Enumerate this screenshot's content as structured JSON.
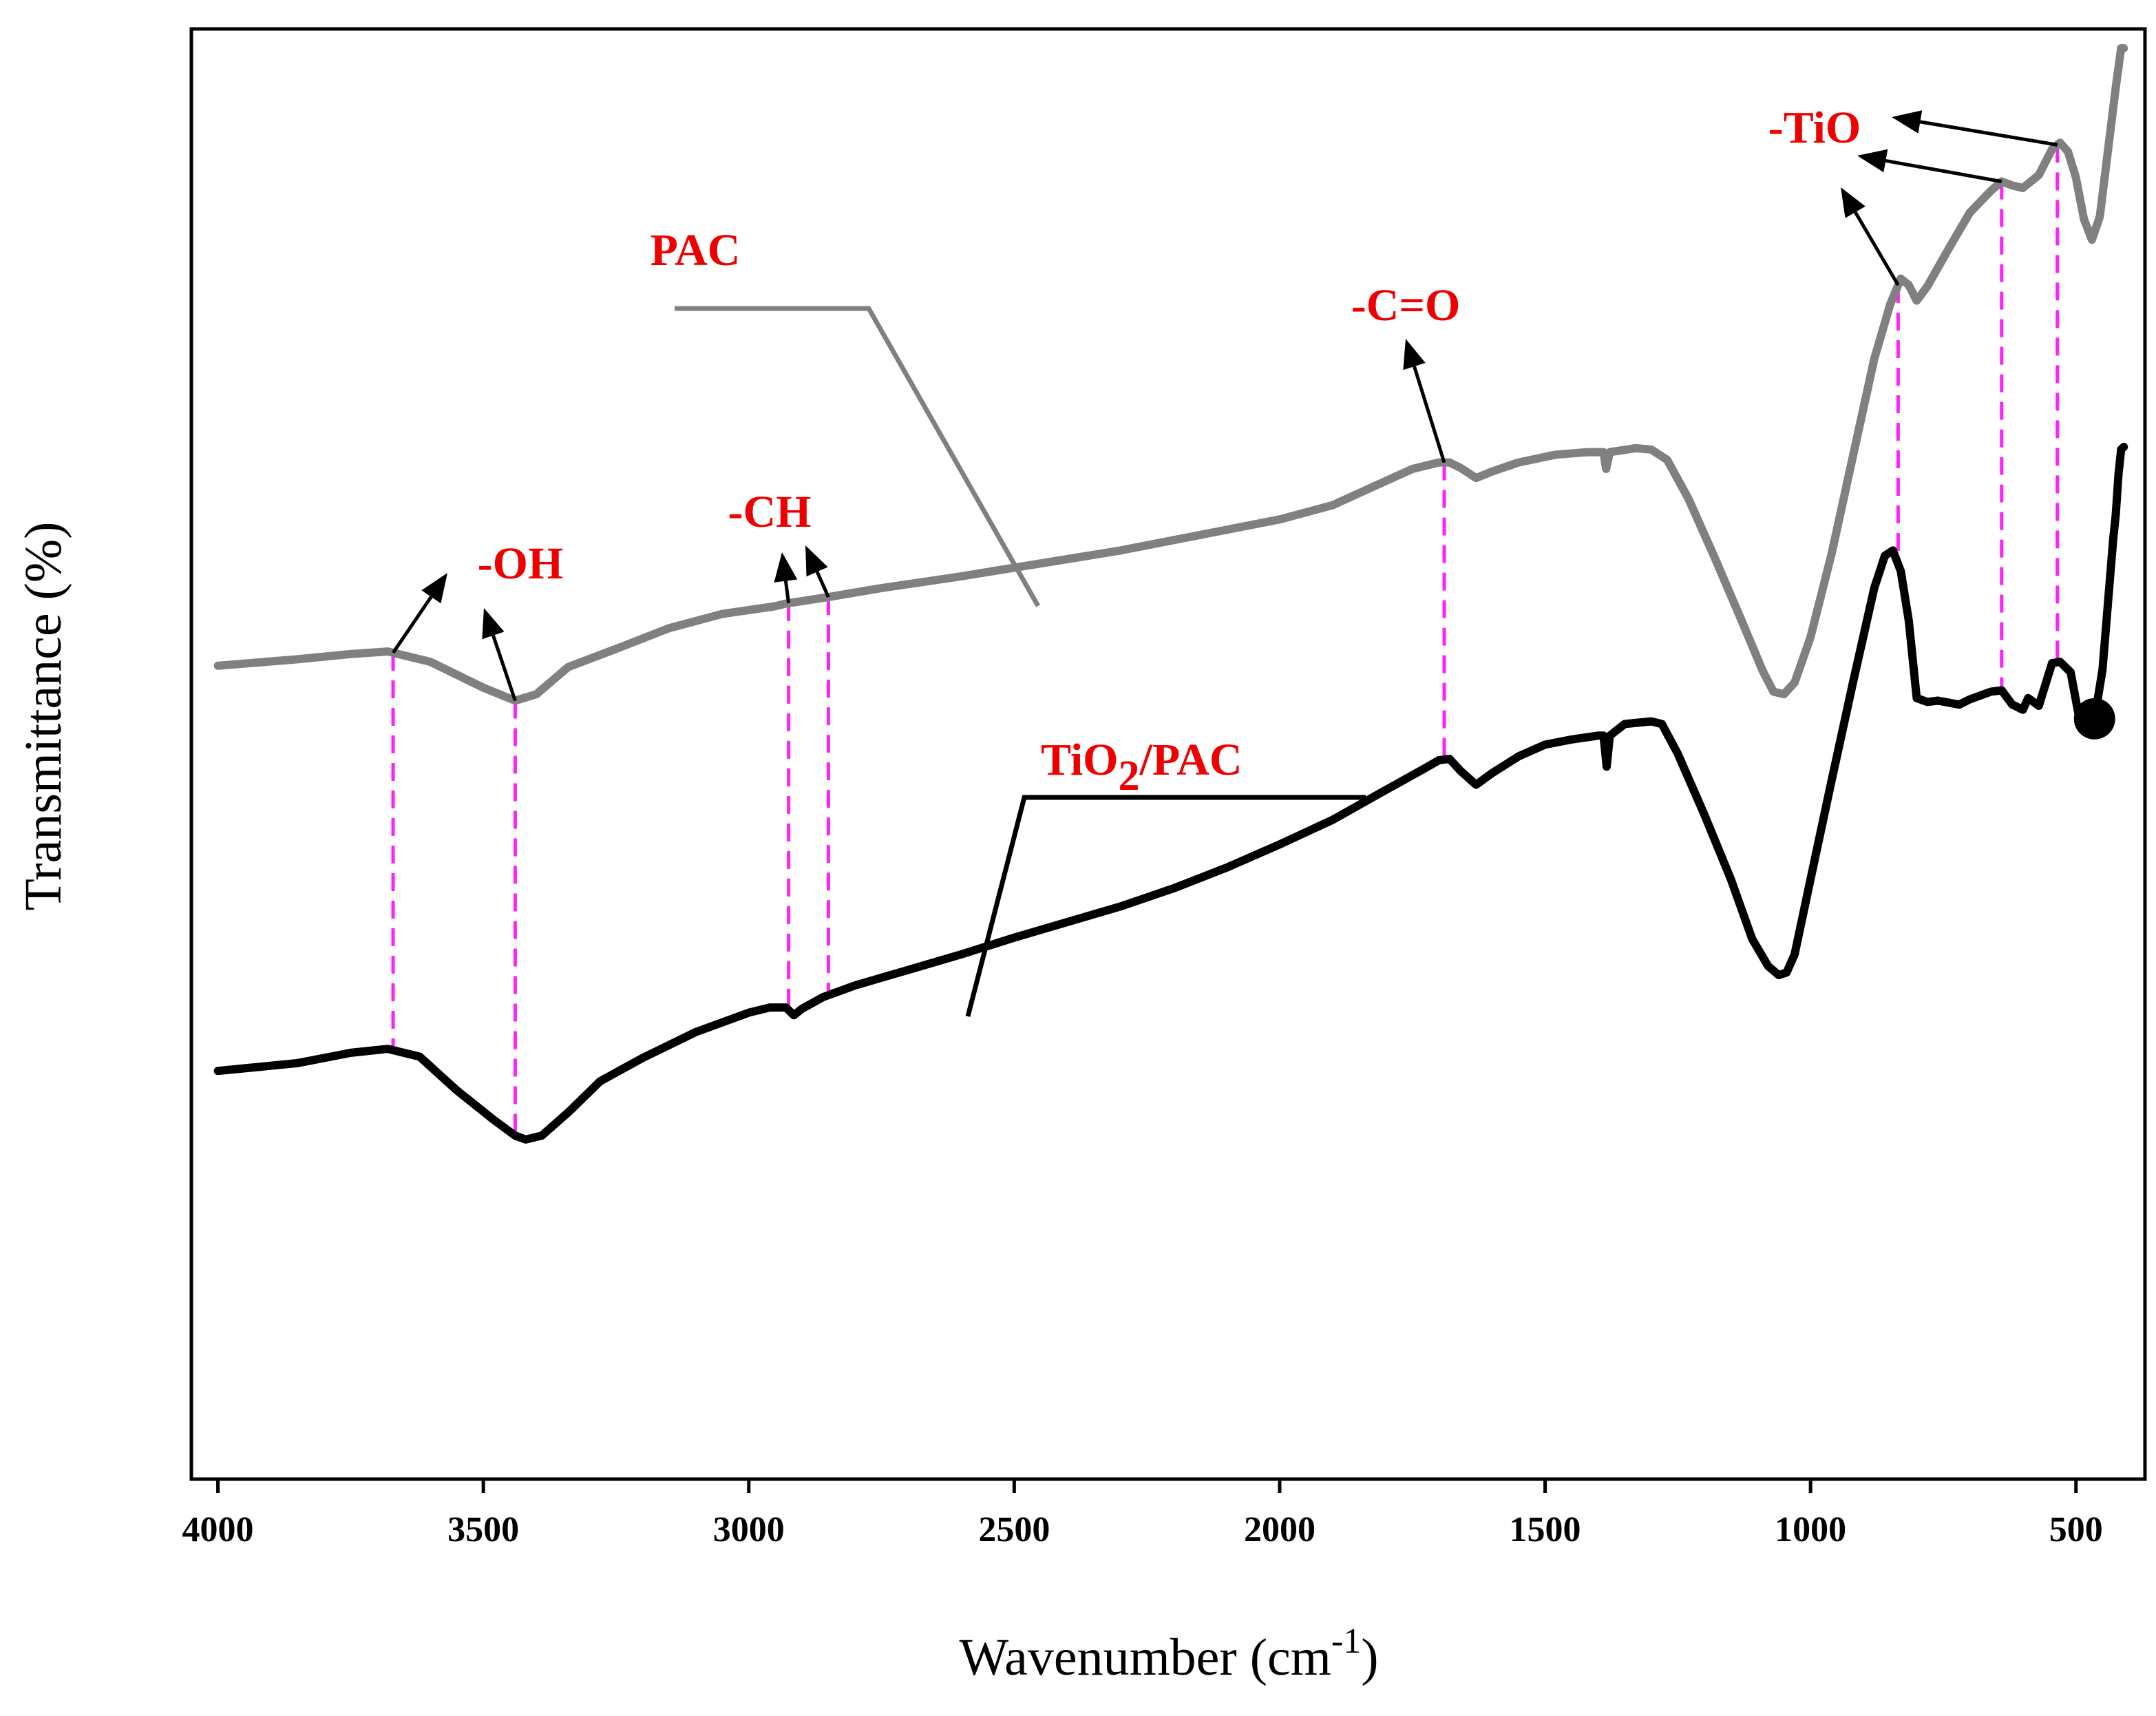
{
  "chart_data": {
    "type": "line",
    "title": "",
    "xlabel": "Wavenumber (cm",
    "xlabel_sup": "-1",
    "xlabel_end": ")",
    "ylabel": "Transmittance (%)",
    "xlim": [
      4050,
      370
    ],
    "ylim": [
      0,
      100
    ],
    "x_ticks": [
      4000,
      3500,
      3000,
      2500,
      2000,
      1500,
      1000,
      500
    ],
    "x_tick_labels": [
      "4000",
      "3500",
      "3000",
      "2500",
      "2000",
      "1500",
      "1000",
      "500"
    ],
    "grid": false,
    "series": [
      {
        "name": "PAC",
        "color": "#808080",
        "points": [
          [
            4000,
            52.3
          ],
          [
            3850,
            52.8
          ],
          [
            3750,
            53.2
          ],
          [
            3680,
            53.4
          ],
          [
            3600,
            52.6
          ],
          [
            3500,
            50.6
          ],
          [
            3440,
            49.6
          ],
          [
            3400,
            50.1
          ],
          [
            3340,
            52.2
          ],
          [
            3250,
            53.6
          ],
          [
            3150,
            55.2
          ],
          [
            3050,
            56.3
          ],
          [
            2950,
            56.9
          ],
          [
            2930,
            57.1
          ],
          [
            2850,
            57.6
          ],
          [
            2750,
            58.3
          ],
          [
            2600,
            59.2
          ],
          [
            2450,
            60.2
          ],
          [
            2300,
            61.2
          ],
          [
            2150,
            62.4
          ],
          [
            2000,
            63.6
          ],
          [
            1900,
            64.7
          ],
          [
            1820,
            66.2
          ],
          [
            1750,
            67.5
          ],
          [
            1700,
            68.0
          ],
          [
            1680,
            68.0
          ],
          [
            1660,
            67.6
          ],
          [
            1630,
            66.8
          ],
          [
            1600,
            67.3
          ],
          [
            1550,
            68.0
          ],
          [
            1480,
            68.6
          ],
          [
            1420,
            68.8
          ],
          [
            1390,
            68.8
          ],
          [
            1385,
            67.5
          ],
          [
            1378,
            68.8
          ],
          [
            1330,
            69.1
          ],
          [
            1300,
            69.0
          ],
          [
            1270,
            68.2
          ],
          [
            1230,
            65.2
          ],
          [
            1180,
            60.6
          ],
          [
            1130,
            55.8
          ],
          [
            1090,
            51.9
          ],
          [
            1070,
            50.3
          ],
          [
            1050,
            50.1
          ],
          [
            1030,
            51.0
          ],
          [
            1000,
            54.5
          ],
          [
            960,
            61.0
          ],
          [
            920,
            68.5
          ],
          [
            880,
            76.0
          ],
          [
            850,
            80.2
          ],
          [
            830,
            82.2
          ],
          [
            815,
            81.7
          ],
          [
            800,
            80.5
          ],
          [
            780,
            81.6
          ],
          [
            740,
            84.5
          ],
          [
            700,
            87.3
          ],
          [
            660,
            89.0
          ],
          [
            640,
            89.7
          ],
          [
            620,
            89.4
          ],
          [
            600,
            89.2
          ],
          [
            570,
            90.2
          ],
          [
            545,
            92.2
          ],
          [
            530,
            92.7
          ],
          [
            515,
            92.0
          ],
          [
            500,
            90.0
          ],
          [
            485,
            86.8
          ],
          [
            470,
            85.2
          ],
          [
            455,
            87.0
          ],
          [
            440,
            92.0
          ],
          [
            425,
            97.0
          ],
          [
            415,
            100.0
          ],
          [
            410,
            100.0
          ]
        ]
      },
      {
        "name": "TiO2/PAC",
        "color": "#000000",
        "points": [
          [
            4000,
            21.0
          ],
          [
            3850,
            21.6
          ],
          [
            3750,
            22.4
          ],
          [
            3680,
            22.7
          ],
          [
            3620,
            22.1
          ],
          [
            3550,
            19.5
          ],
          [
            3480,
            17.2
          ],
          [
            3440,
            16.0
          ],
          [
            3420,
            15.7
          ],
          [
            3390,
            16.0
          ],
          [
            3340,
            17.8
          ],
          [
            3280,
            20.2
          ],
          [
            3200,
            22.0
          ],
          [
            3100,
            24.0
          ],
          [
            3000,
            25.5
          ],
          [
            2960,
            25.9
          ],
          [
            2930,
            25.9
          ],
          [
            2915,
            25.3
          ],
          [
            2900,
            25.8
          ],
          [
            2860,
            26.7
          ],
          [
            2840,
            27.0
          ],
          [
            2800,
            27.6
          ],
          [
            2700,
            28.8
          ],
          [
            2600,
            30.0
          ],
          [
            2500,
            31.3
          ],
          [
            2400,
            32.5
          ],
          [
            2300,
            33.7
          ],
          [
            2200,
            35.1
          ],
          [
            2100,
            36.7
          ],
          [
            2000,
            38.5
          ],
          [
            1900,
            40.4
          ],
          [
            1800,
            42.7
          ],
          [
            1730,
            44.3
          ],
          [
            1700,
            45.0
          ],
          [
            1680,
            45.1
          ],
          [
            1660,
            44.2
          ],
          [
            1630,
            43.1
          ],
          [
            1600,
            44.0
          ],
          [
            1550,
            45.3
          ],
          [
            1500,
            46.2
          ],
          [
            1450,
            46.6
          ],
          [
            1400,
            46.9
          ],
          [
            1390,
            46.9
          ],
          [
            1384,
            44.5
          ],
          [
            1378,
            46.9
          ],
          [
            1350,
            47.8
          ],
          [
            1300,
            48.0
          ],
          [
            1280,
            47.8
          ],
          [
            1250,
            45.5
          ],
          [
            1200,
            40.8
          ],
          [
            1150,
            35.8
          ],
          [
            1110,
            31.2
          ],
          [
            1080,
            29.1
          ],
          [
            1060,
            28.4
          ],
          [
            1045,
            28.6
          ],
          [
            1030,
            30.0
          ],
          [
            1000,
            35.8
          ],
          [
            960,
            43.5
          ],
          [
            920,
            51.0
          ],
          [
            880,
            58.3
          ],
          [
            860,
            60.8
          ],
          [
            845,
            61.2
          ],
          [
            830,
            59.6
          ],
          [
            815,
            55.8
          ],
          [
            800,
            49.8
          ],
          [
            780,
            49.5
          ],
          [
            760,
            49.6
          ],
          [
            720,
            49.3
          ],
          [
            700,
            49.7
          ],
          [
            660,
            50.3
          ],
          [
            640,
            50.4
          ],
          [
            620,
            49.3
          ],
          [
            600,
            48.9
          ],
          [
            590,
            49.8
          ],
          [
            570,
            49.2
          ],
          [
            545,
            52.5
          ],
          [
            530,
            52.6
          ],
          [
            510,
            51.8
          ],
          [
            495,
            48.5
          ],
          [
            480,
            48.0
          ],
          [
            465,
            48.2
          ],
          [
            450,
            52.0
          ],
          [
            440,
            57.0
          ],
          [
            430,
            62.0
          ],
          [
            425,
            64.0
          ],
          [
            420,
            67.0
          ],
          [
            415,
            69.0
          ],
          [
            410,
            69.2
          ]
        ]
      }
    ],
    "legend": [
      {
        "label": "PAC",
        "series": "PAC"
      },
      {
        "label": "TiO2/PAC",
        "label_main": "TiO",
        "label_sub": "2",
        "label_rest": "/PAC",
        "series": "TiO2/PAC"
      }
    ],
    "annotations": [
      {
        "label": "-OH",
        "wavenumbers": [
          3670,
          3440
        ]
      },
      {
        "label": "-CH",
        "wavenumbers": [
          2925,
          2850
        ]
      },
      {
        "label": "-C=O",
        "wavenumbers": [
          1690
        ]
      },
      {
        "label": "-TiO",
        "wavenumbers": [
          835,
          640,
          535
        ]
      }
    ],
    "colors": {
      "annotation_text": "#ee0000",
      "guide_line": "#ff22ff",
      "frame": "#000000"
    }
  }
}
